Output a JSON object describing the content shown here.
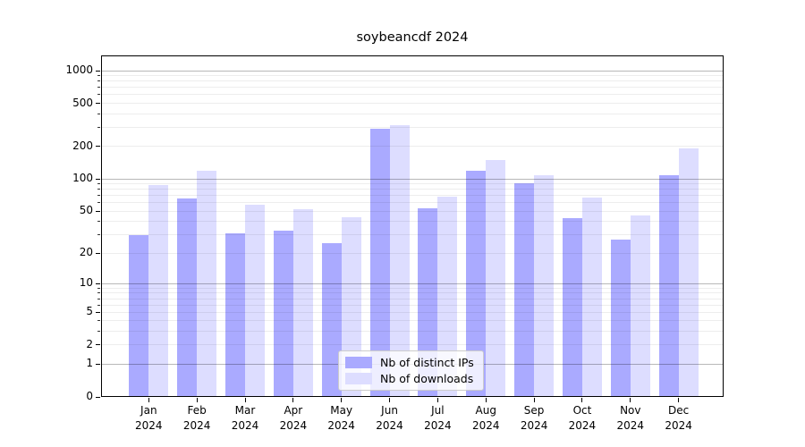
{
  "chart_data": {
    "type": "bar",
    "title": "soybeancdf 2024",
    "scale": "log-like (log10(1+v)), symlog with 0 at baseline",
    "categories": [
      "Jan 2024",
      "Feb 2024",
      "Mar 2024",
      "Apr 2024",
      "May 2024",
      "Jun 2024",
      "Jul 2024",
      "Aug 2024",
      "Sep 2024",
      "Oct 2024",
      "Nov 2024",
      "Dec 2024"
    ],
    "series": [
      {
        "name": "Nb of distinct IPs",
        "color": "#aaaaff",
        "values": [
          30,
          66,
          31,
          33,
          25,
          290,
          53,
          120,
          92,
          43,
          27,
          109
        ]
      },
      {
        "name": "Nb of downloads",
        "color": "#ddddff",
        "values": [
          87,
          120,
          58,
          52,
          44,
          312,
          69,
          150,
          108,
          67,
          46,
          192
        ]
      }
    ],
    "xlabel": "",
    "ylabel": "",
    "ylim": [
      0,
      1380
    ],
    "yticks": [
      0,
      1,
      2,
      5,
      10,
      20,
      50,
      100,
      200,
      500,
      1000
    ],
    "grid": true,
    "grid_major_at": [
      1,
      10,
      100,
      1000
    ],
    "legend_position": "lower center"
  }
}
